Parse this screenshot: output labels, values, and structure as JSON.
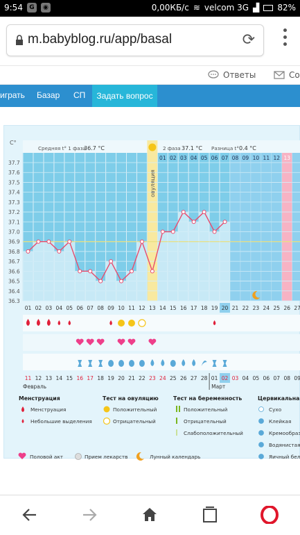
{
  "status": {
    "time": "9:54",
    "speed": "0,00КБ/с",
    "carrier": "velcom 3G",
    "battery": "82%"
  },
  "browser": {
    "url": "m.babyblog.ru/app/basal"
  },
  "topnav": {
    "answers": "Ответы",
    "messages": "Со"
  },
  "bluenav": {
    "items": [
      "играть",
      "Базар",
      "СП"
    ],
    "ask": "Задать вопрос"
  },
  "chart_data": {
    "type": "line",
    "y_axis_label": "C°",
    "ylim": [
      36.3,
      37.7
    ],
    "y_ticks": [
      "37.7",
      "37.6",
      "37.5",
      "37.4",
      "37.3",
      "37.2",
      "37.1",
      "37.0",
      "36.9",
      "36.8",
      "36.7",
      "36.6",
      "36.5",
      "36.4",
      "36.3"
    ],
    "cover_line": 36.9,
    "phase1_label": "Средняя t° 1 фаза",
    "phase1_value": "36.7 °C",
    "phase2_label": "2 фаза",
    "phase2_value": "37.1 °C",
    "diff_label": "Разница t°",
    "diff_value": "0.4 °C",
    "ovulation_label": "овуляция",
    "ovulation_index": 12,
    "top_days": [
      "01",
      "02",
      "03",
      "04",
      "05",
      "06",
      "07",
      "08",
      "09",
      "10",
      "11",
      "12",
      "13"
    ],
    "top_days_start_index": 13,
    "days": [
      "01",
      "02",
      "03",
      "04",
      "05",
      "06",
      "07",
      "08",
      "09",
      "10",
      "11",
      "12",
      "13",
      "14",
      "15",
      "16",
      "17",
      "18",
      "19",
      "20",
      "21",
      "22",
      "23",
      "24",
      "25",
      "26",
      "27"
    ],
    "temperatures": [
      36.8,
      36.9,
      36.9,
      36.8,
      36.9,
      36.6,
      36.6,
      36.5,
      36.7,
      36.5,
      36.6,
      36.9,
      36.6,
      37.0,
      37.0,
      37.2,
      37.1,
      37.2,
      37.0,
      37.1
    ],
    "current_day_index": 19,
    "pink_day_index": 25,
    "moon_day_index": 22,
    "bleeding": [
      "heavy",
      "heavy",
      "heavy",
      "light",
      "light",
      "",
      "",
      "",
      "light",
      "pos",
      "pos",
      "neg",
      "",
      "",
      "",
      "",
      "",
      "",
      "light",
      "",
      "",
      "",
      "",
      "",
      "",
      "",
      ""
    ],
    "intercourse": [
      0,
      0,
      0,
      0,
      0,
      1,
      1,
      1,
      0,
      1,
      1,
      0,
      1,
      0,
      0,
      0,
      0,
      0,
      0,
      0,
      0,
      0,
      0,
      0,
      0,
      0,
      0
    ],
    "cervical": [
      "",
      "",
      "",
      "",
      "",
      "sticky",
      "sticky",
      "sticky",
      "egg",
      "egg",
      "egg",
      "egg",
      "water",
      "water",
      "egg",
      "water",
      "water",
      "creamy",
      "sticky",
      "sticky",
      "",
      "",
      "",
      "",
      "",
      "",
      ""
    ],
    "dates": [
      "11",
      "12",
      "13",
      "14",
      "15",
      "16",
      "17",
      "18",
      "19",
      "20",
      "21",
      "22",
      "23",
      "24",
      "25",
      "26",
      "27",
      "28",
      "01",
      "02",
      "03",
      "04",
      "05",
      "06",
      "07",
      "08",
      "09"
    ],
    "red_date_indices": [
      0,
      5,
      6,
      12,
      13,
      19,
      20
    ],
    "current_date_index": 19,
    "month1": "Февраль",
    "month2": "Март",
    "month2_index": 18
  },
  "legend": {
    "menstruation": {
      "title": "Менструация",
      "items": [
        "Менструация",
        "Небольшие выделения"
      ]
    },
    "ovulation_test": {
      "title": "Тест на овуляцию",
      "items": [
        "Положительный",
        "Отрицательный"
      ]
    },
    "pregnancy_test": {
      "title": "Тест на беременность",
      "items": [
        "Положительный",
        "Отрицательный",
        "Слабоположительный"
      ]
    },
    "cervical": {
      "title": "Цервикальная",
      "items": [
        "Сухо",
        "Клейкая",
        "Кремообраз",
        "Водянистая",
        "Яичный бел"
      ]
    },
    "extra": [
      "Половой акт",
      "Прием лекарств",
      "Лунный календарь"
    ]
  },
  "colors": {
    "blue_nav": "#2c8fcf",
    "ask_button": "#27b6d9",
    "bar_blue": "#7ecde9",
    "line_red": "#e84b6d",
    "ovulation_yellow": "#f8e9a0",
    "pink_column": "#f7b3c4",
    "current_day": "#8fd0ee"
  },
  "icons": [
    "lock-icon",
    "reload-icon",
    "menu-dots-icon",
    "answers-icon",
    "mail-icon",
    "back-icon",
    "forward-icon",
    "home-icon",
    "tabs-icon",
    "opera-icon"
  ]
}
